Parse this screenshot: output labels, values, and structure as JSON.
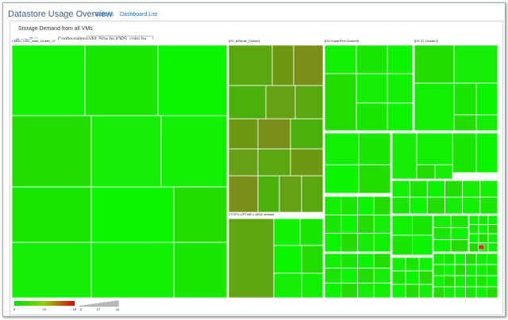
{
  "header": {
    "title": "Datastore Usage Overview",
    "menus": [
      "Actions",
      "Dashboard List"
    ]
  },
  "panel": {
    "title": "Storage Demand from all VMs",
    "toolbar": {
      "button": "Configurations",
      "select": "VM: Size by IOPS, color by ..."
    }
  },
  "treemap": {
    "groups": [
      "CMBU_DSG_vsan_Cluster_07",
      "[DS_80Node_Cluster]",
      "[DS-SuperPerf-Cluster3]",
      "[DS-37-Cluster2]",
      "VTOPS-UPTIME-LAB02-testlast"
    ]
  },
  "legend": {
    "color_labels": [
      "0",
      "15",
      "25"
    ],
    "size_labels": [
      "0",
      "27",
      "44"
    ]
  }
}
